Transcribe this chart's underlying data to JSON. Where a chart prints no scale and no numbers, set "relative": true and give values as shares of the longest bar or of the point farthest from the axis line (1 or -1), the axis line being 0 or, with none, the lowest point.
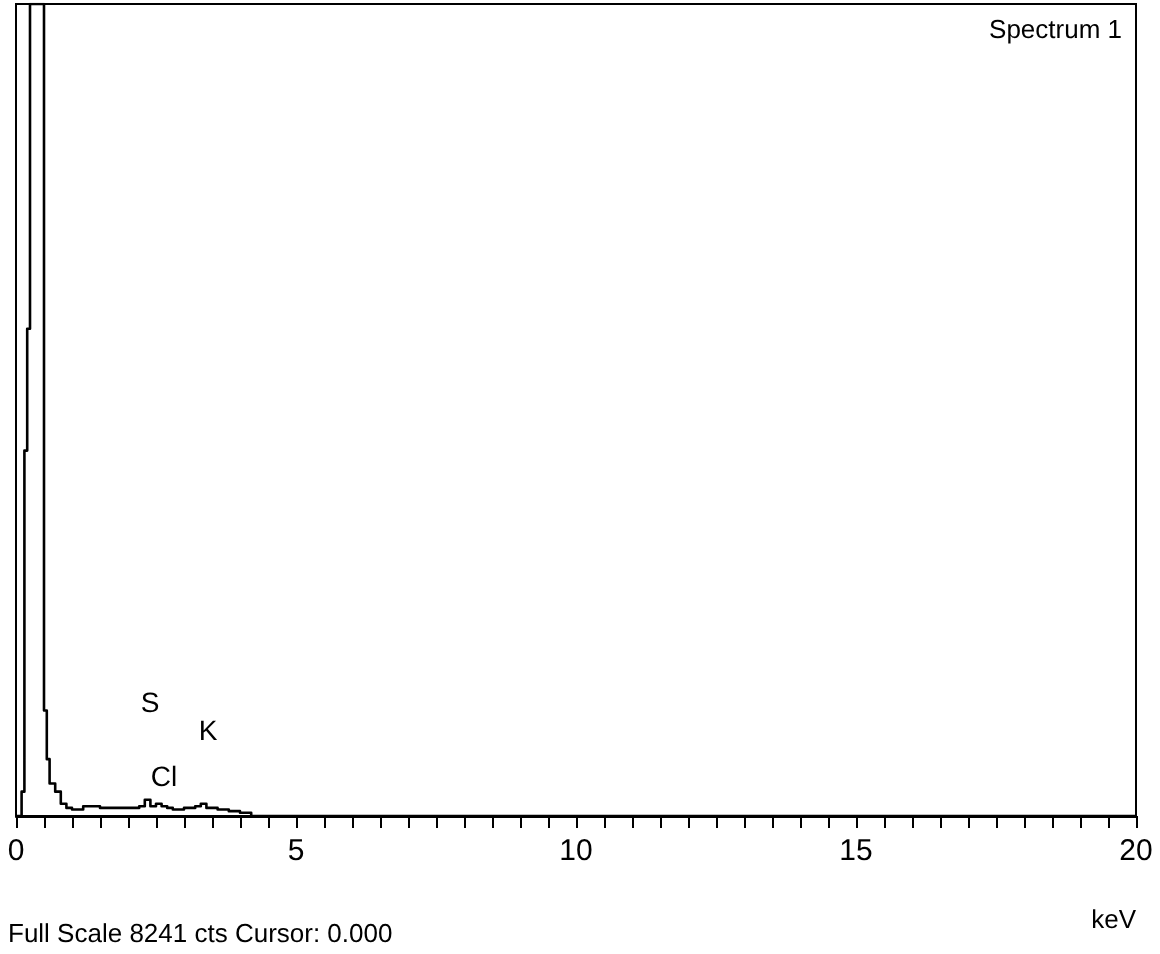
{
  "chart_data": {
    "type": "step",
    "title": "Spectrum 1",
    "xlabel": "keV",
    "relative": true,
    "x": [
      0,
      0.05,
      0.1,
      0.15,
      0.2,
      0.25,
      0.3,
      0.35,
      0.4,
      0.45,
      0.5,
      0.55,
      0.6,
      0.7,
      0.8,
      0.9,
      1.0,
      1.2,
      1.5,
      2.0,
      2.2,
      2.3,
      2.4,
      2.5,
      2.6,
      2.7,
      2.8,
      3.0,
      3.2,
      3.3,
      3.4,
      3.6,
      3.8,
      4.0,
      4.2,
      5,
      10,
      15,
      20
    ],
    "series": [
      {
        "color": "#000000",
        "values": [
          0,
          0,
          0.03,
          0.45,
          0.6,
          1,
          1,
          1,
          1,
          1,
          0.13,
          0.07,
          0.04,
          0.03,
          0.015,
          0.01,
          0.008,
          0.012,
          0.01,
          0.01,
          0.012,
          0.02,
          0.012,
          0.015,
          0.012,
          0.01,
          0.008,
          0.01,
          0.012,
          0.015,
          0.01,
          0.008,
          0.006,
          0.004,
          0,
          0,
          0,
          0,
          0
        ]
      }
    ],
    "xlim": [
      0,
      20
    ],
    "xticks": [
      0,
      {
        "value": 0.5,
        "label": null
      },
      {
        "value": 1,
        "label": null
      },
      {
        "value": 1.5,
        "label": null
      },
      {
        "value": 2,
        "label": null
      },
      {
        "value": 2.5,
        "label": null
      },
      {
        "value": 3,
        "label": null
      },
      {
        "value": 3.5,
        "label": null
      },
      {
        "value": 4,
        "label": null
      },
      {
        "value": 4.5,
        "label": null
      },
      5,
      {
        "value": 5.5,
        "label": null
      },
      {
        "value": 6,
        "label": null
      },
      {
        "value": 6.5,
        "label": null
      },
      {
        "value": 7,
        "label": null
      },
      {
        "value": 7.5,
        "label": null
      },
      {
        "value": 8,
        "label": null
      },
      {
        "value": 8.5,
        "label": null
      },
      {
        "value": 9,
        "label": null
      },
      {
        "value": 9.5,
        "label": null
      },
      10,
      {
        "value": 10.5,
        "label": null
      },
      {
        "value": 11,
        "label": null
      },
      {
        "value": 11.5,
        "label": null
      },
      {
        "value": 12,
        "label": null
      },
      {
        "value": 12.5,
        "label": null
      },
      {
        "value": 13,
        "label": null
      },
      {
        "value": 13.5,
        "label": null
      },
      {
        "value": 14,
        "label": null
      },
      {
        "value": 14.5,
        "label": null
      },
      15,
      {
        "value": 15.5,
        "label": null
      },
      {
        "value": 16,
        "label": null
      },
      {
        "value": 16.5,
        "label": null
      },
      {
        "value": 17,
        "label": null
      },
      {
        "value": 17.5,
        "label": null
      },
      {
        "value": 18,
        "label": null
      },
      {
        "value": 18.5,
        "label": null
      },
      {
        "value": 19,
        "label": null
      },
      {
        "value": 19.5,
        "label": null
      },
      20
    ],
    "annotations": [
      "S",
      "K",
      "Cl",
      "Full Scale 8241 cts Cursor: 0.000"
    ],
    "grid": false,
    "line_style": "solid",
    "marker": "none"
  }
}
